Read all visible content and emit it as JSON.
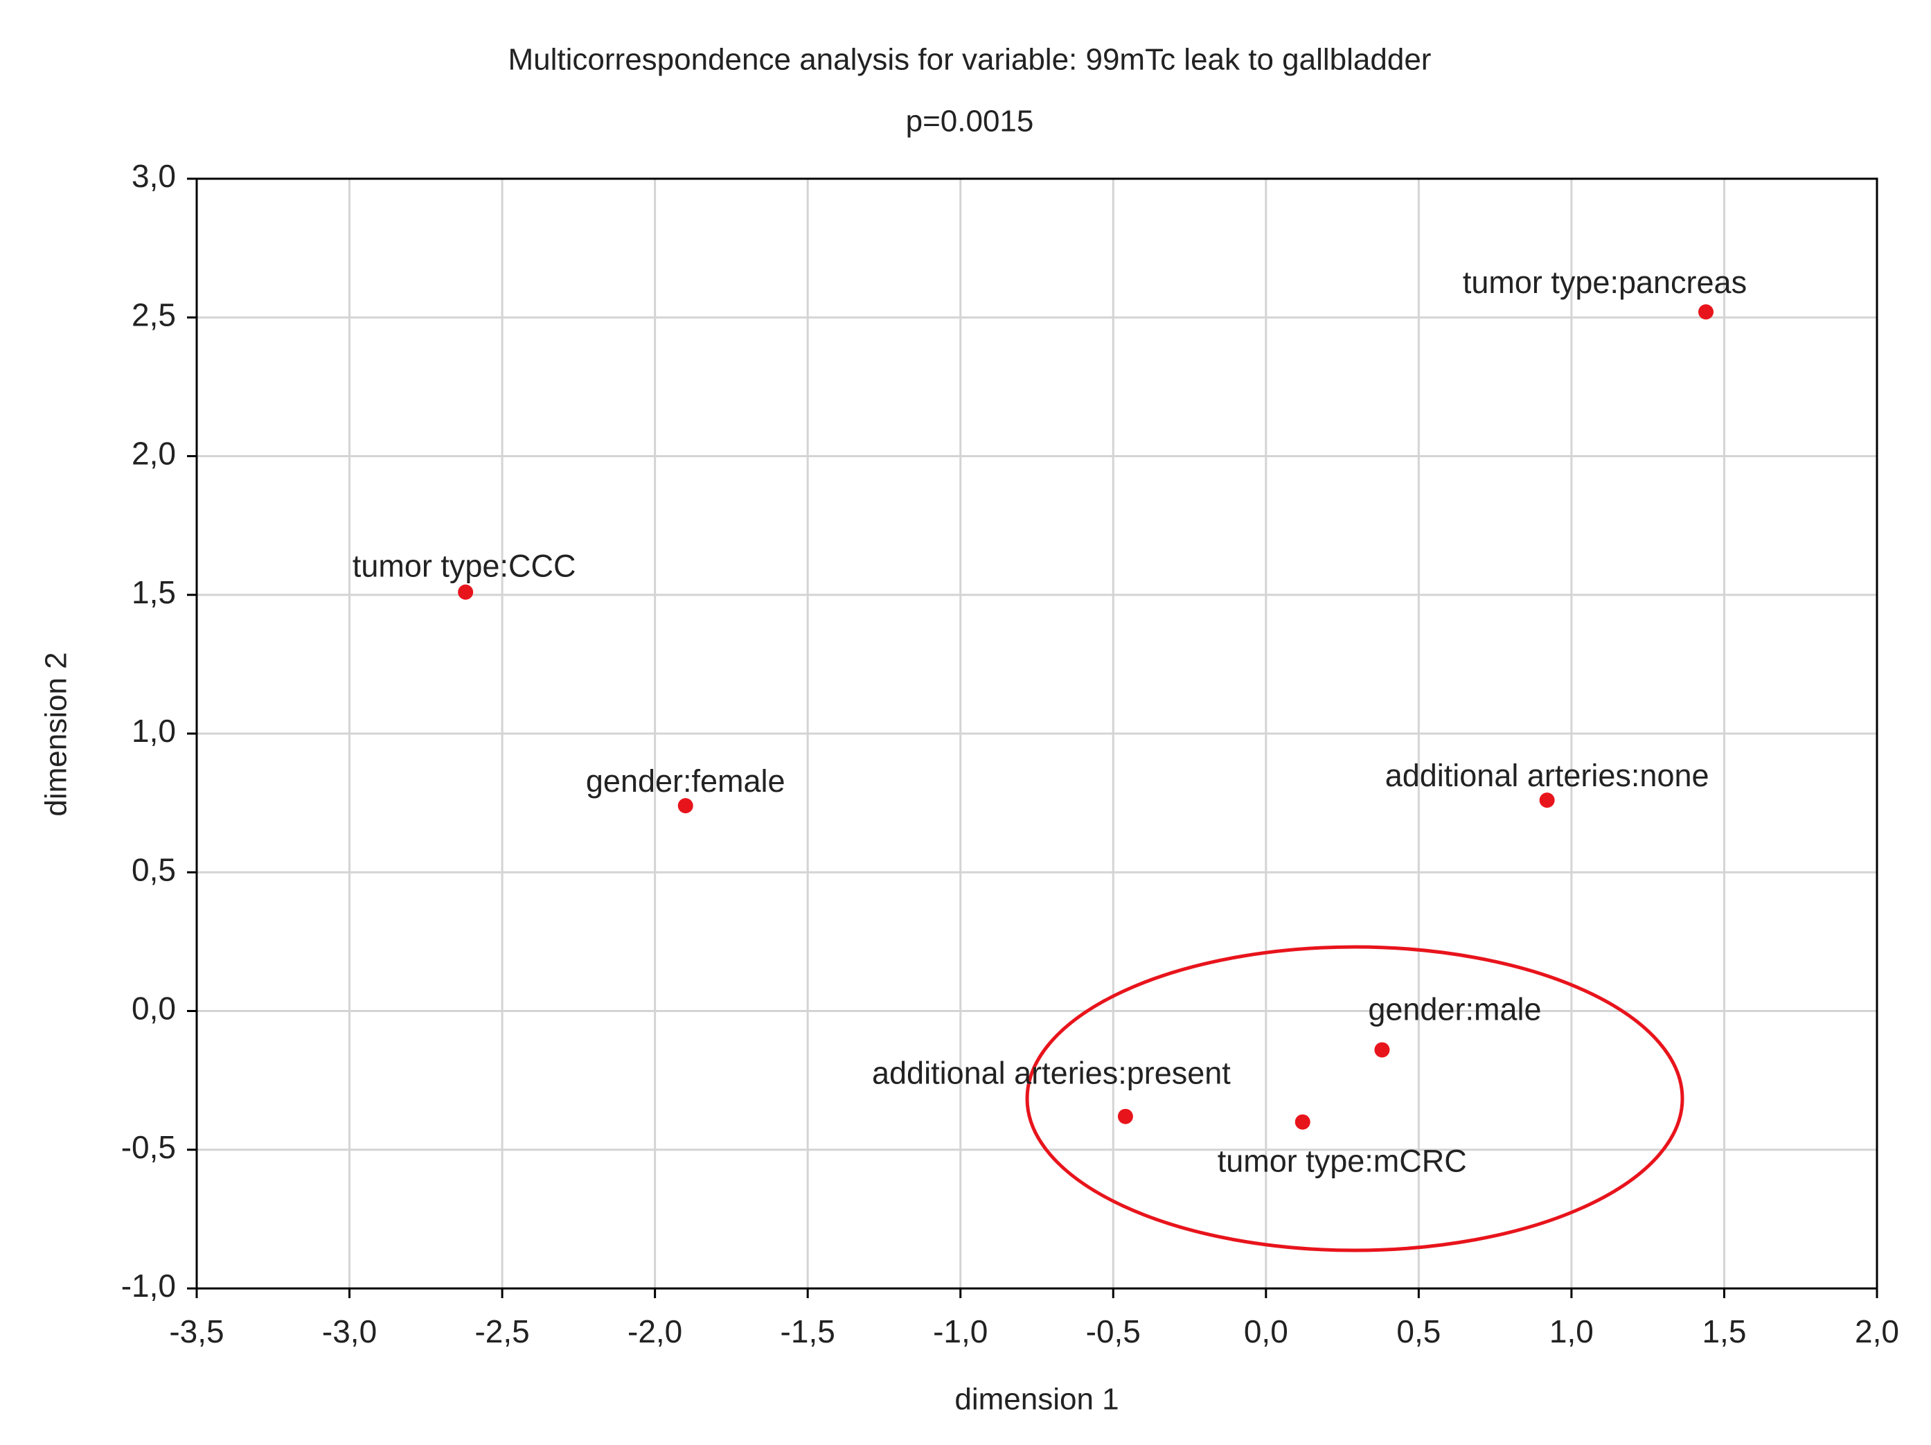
{
  "chart_data": {
    "type": "scatter",
    "title": "Multicorrespondence analysis for variable: 99mTc leak to gallbladder",
    "subtitle": "p=0.0015",
    "x_label": "dimension 1",
    "y_label": "dimension 2",
    "xlim": [
      -3.5,
      2.0
    ],
    "ylim": [
      -1.0,
      3.0
    ],
    "xticks": [
      {
        "value": -3.5,
        "label": "-3,5"
      },
      {
        "value": -3.0,
        "label": "-3,0"
      },
      {
        "value": -2.5,
        "label": "-2,5"
      },
      {
        "value": -2.0,
        "label": "-2,0"
      },
      {
        "value": -1.5,
        "label": "-1,5"
      },
      {
        "value": -1.0,
        "label": "-1,0"
      },
      {
        "value": -0.5,
        "label": "-0,5"
      },
      {
        "value": 0.0,
        "label": "0,0"
      },
      {
        "value": 0.5,
        "label": "0,5"
      },
      {
        "value": 1.0,
        "label": "1,0"
      },
      {
        "value": 1.5,
        "label": "1,5"
      },
      {
        "value": 2.0,
        "label": "2,0"
      }
    ],
    "yticks": [
      {
        "value": -1.0,
        "label": "-1,0"
      },
      {
        "value": -0.5,
        "label": "-0,5"
      },
      {
        "value": 0.0,
        "label": "0,0"
      },
      {
        "value": 0.5,
        "label": "0,5"
      },
      {
        "value": 1.0,
        "label": "1,0"
      },
      {
        "value": 1.5,
        "label": "1,5"
      },
      {
        "value": 2.0,
        "label": "2,0"
      },
      {
        "value": 2.5,
        "label": "2,5"
      },
      {
        "value": 3.0,
        "label": "3,0"
      }
    ],
    "grid": true,
    "series": [
      {
        "color": "#e8141c",
        "x": [
          1.44,
          -2.62,
          -1.9,
          0.92,
          0.38,
          -0.46,
          0.12
        ],
        "values": [
          2.52,
          1.51,
          0.74,
          0.76,
          -0.14,
          -0.38,
          -0.4
        ],
        "labels": [
          "tumor type:pancreas",
          "tumor type:CCC",
          "gender:female",
          "additional arteries:none",
          "gender:male",
          "additional arteries:present",
          "tumor type:mCRC"
        ]
      }
    ]
  }
}
